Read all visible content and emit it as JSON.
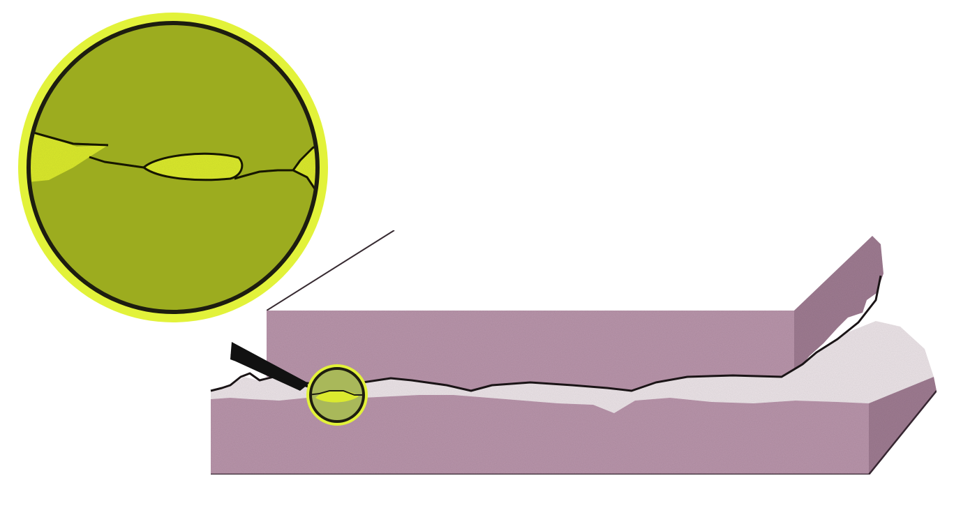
{
  "diagram": {
    "subject": "fracture-between-two-slabs-with-magnified-inset",
    "labels": []
  },
  "colors": {
    "background": "#ffffff",
    "slab_front": "#b995ab",
    "slab_top_edge": "#c6a3b8",
    "slab_side": "#9f7b92",
    "slab_back_face": "#ad8aa0",
    "fracture_surface": "#ece4e8",
    "fracture_line": "#1a1416",
    "magnifier_ring": "#e2f23a",
    "magnifier_fill": "#9cac1f",
    "magnifier_highlight": "#dbea2f",
    "magnifier_border": "#1d1d10",
    "small_lens_fill": "#a9b85a",
    "pointer": "#111111"
  }
}
